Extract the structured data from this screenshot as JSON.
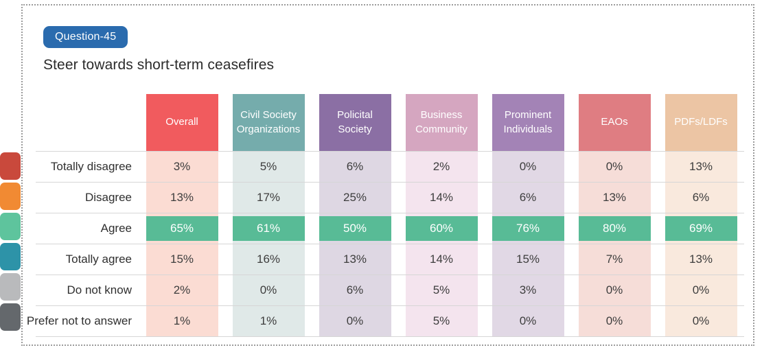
{
  "badge": {
    "label": "Question-45",
    "color": "#2a6bae"
  },
  "title": "Steer towards short-term ceasefires",
  "legend": {
    "colors": [
      "#c9493c",
      "#f18a33",
      "#5ec49d",
      "#2d93a8",
      "#b9babc",
      "#64686c"
    ]
  },
  "table": {
    "columns": [
      {
        "label": "Overall",
        "header_color": "#f15b5e",
        "body_color": "#fbdcd3"
      },
      {
        "label": "Civil Society Organizations",
        "header_color": "#75acac",
        "body_color": "#e0e9e8"
      },
      {
        "label": "Policital Society",
        "header_color": "#8b6fa4",
        "body_color": "#ded7e3"
      },
      {
        "label": "Business Community",
        "header_color": "#d5a6c0",
        "body_color": "#f4e4ee"
      },
      {
        "label": "Prominent Individuals",
        "header_color": "#a383b6",
        "body_color": "#e1d8e5"
      },
      {
        "label": "EAOs",
        "header_color": "#df7d82",
        "body_color": "#f6ddd8"
      },
      {
        "label": "PDFs/LDFs",
        "header_color": "#ecc5a4",
        "body_color": "#f9e9dd"
      }
    ],
    "rows": [
      {
        "label": "Totally disagree",
        "values": [
          "3%",
          "5%",
          "6%",
          "2%",
          "0%",
          "0%",
          "13%"
        ],
        "highlight": false
      },
      {
        "label": "Disagree",
        "values": [
          "13%",
          "17%",
          "25%",
          "14%",
          "6%",
          "13%",
          "6%"
        ],
        "highlight": false
      },
      {
        "label": "Agree",
        "values": [
          "65%",
          "61%",
          "50%",
          "60%",
          "76%",
          "80%",
          "69%"
        ],
        "highlight": true
      },
      {
        "label": "Totally agree",
        "values": [
          "15%",
          "16%",
          "13%",
          "14%",
          "15%",
          "7%",
          "13%"
        ],
        "highlight": false
      },
      {
        "label": "Do not know",
        "values": [
          "2%",
          "0%",
          "6%",
          "5%",
          "3%",
          "0%",
          "0%"
        ],
        "highlight": false
      },
      {
        "label": "Prefer not to answer",
        "values": [
          "1%",
          "1%",
          "0%",
          "5%",
          "0%",
          "0%",
          "0%"
        ],
        "highlight": false
      }
    ],
    "highlight": {
      "row": "Agree",
      "color": "#58bb96",
      "text_color": "#ffffff"
    }
  },
  "chart_data": {
    "type": "table",
    "title": "Steer towards short-term ceasefires",
    "badge": "Question-45",
    "categories": [
      "Overall",
      "Civil Society Organizations",
      "Policital Society",
      "Business Community",
      "Prominent Individuals",
      "EAOs",
      "PDFs/LDFs"
    ],
    "series": [
      {
        "name": "Totally disagree",
        "values": [
          3,
          5,
          6,
          2,
          0,
          0,
          13
        ]
      },
      {
        "name": "Disagree",
        "values": [
          13,
          17,
          25,
          14,
          6,
          13,
          6
        ]
      },
      {
        "name": "Agree",
        "values": [
          65,
          61,
          50,
          60,
          76,
          80,
          69
        ]
      },
      {
        "name": "Totally agree",
        "values": [
          15,
          16,
          13,
          14,
          15,
          7,
          13
        ]
      },
      {
        "name": "Do not know",
        "values": [
          2,
          0,
          6,
          5,
          3,
          0,
          0
        ]
      },
      {
        "name": "Prefer not to answer",
        "values": [
          1,
          1,
          0,
          5,
          0,
          0,
          0
        ]
      }
    ],
    "unit": "%",
    "highlighted_series": "Agree",
    "legend_position": "left"
  }
}
